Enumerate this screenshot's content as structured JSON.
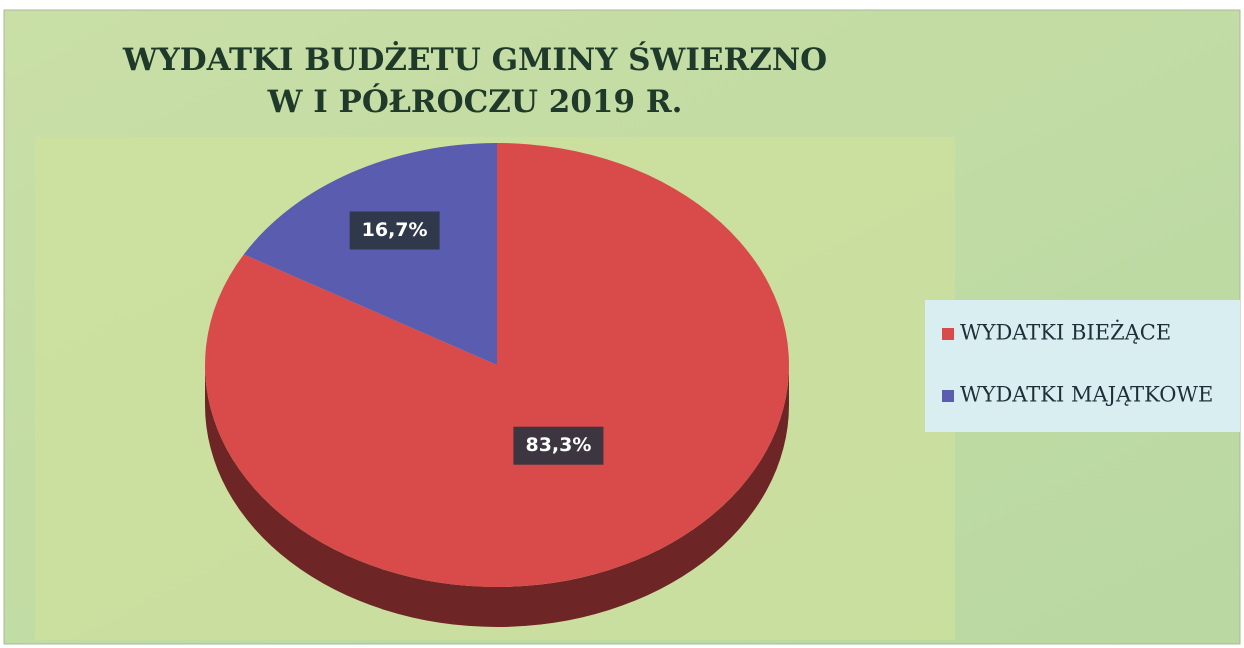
{
  "chart_data": {
    "type": "pie",
    "title": [
      "WYDATKI BUDŻETU GMINY ŚWIERZNO",
      "W I PÓŁROCZU 2019 R."
    ],
    "categories": [
      "WYDATKI BIEŻĄCE",
      "WYDATKI MAJĄTKOWE"
    ],
    "values": [
      83.3,
      16.7
    ],
    "value_labels": [
      "83,3%",
      "16,7%"
    ],
    "colors": [
      "#d94a4a",
      "#5a5cb0"
    ],
    "legend": "right"
  }
}
